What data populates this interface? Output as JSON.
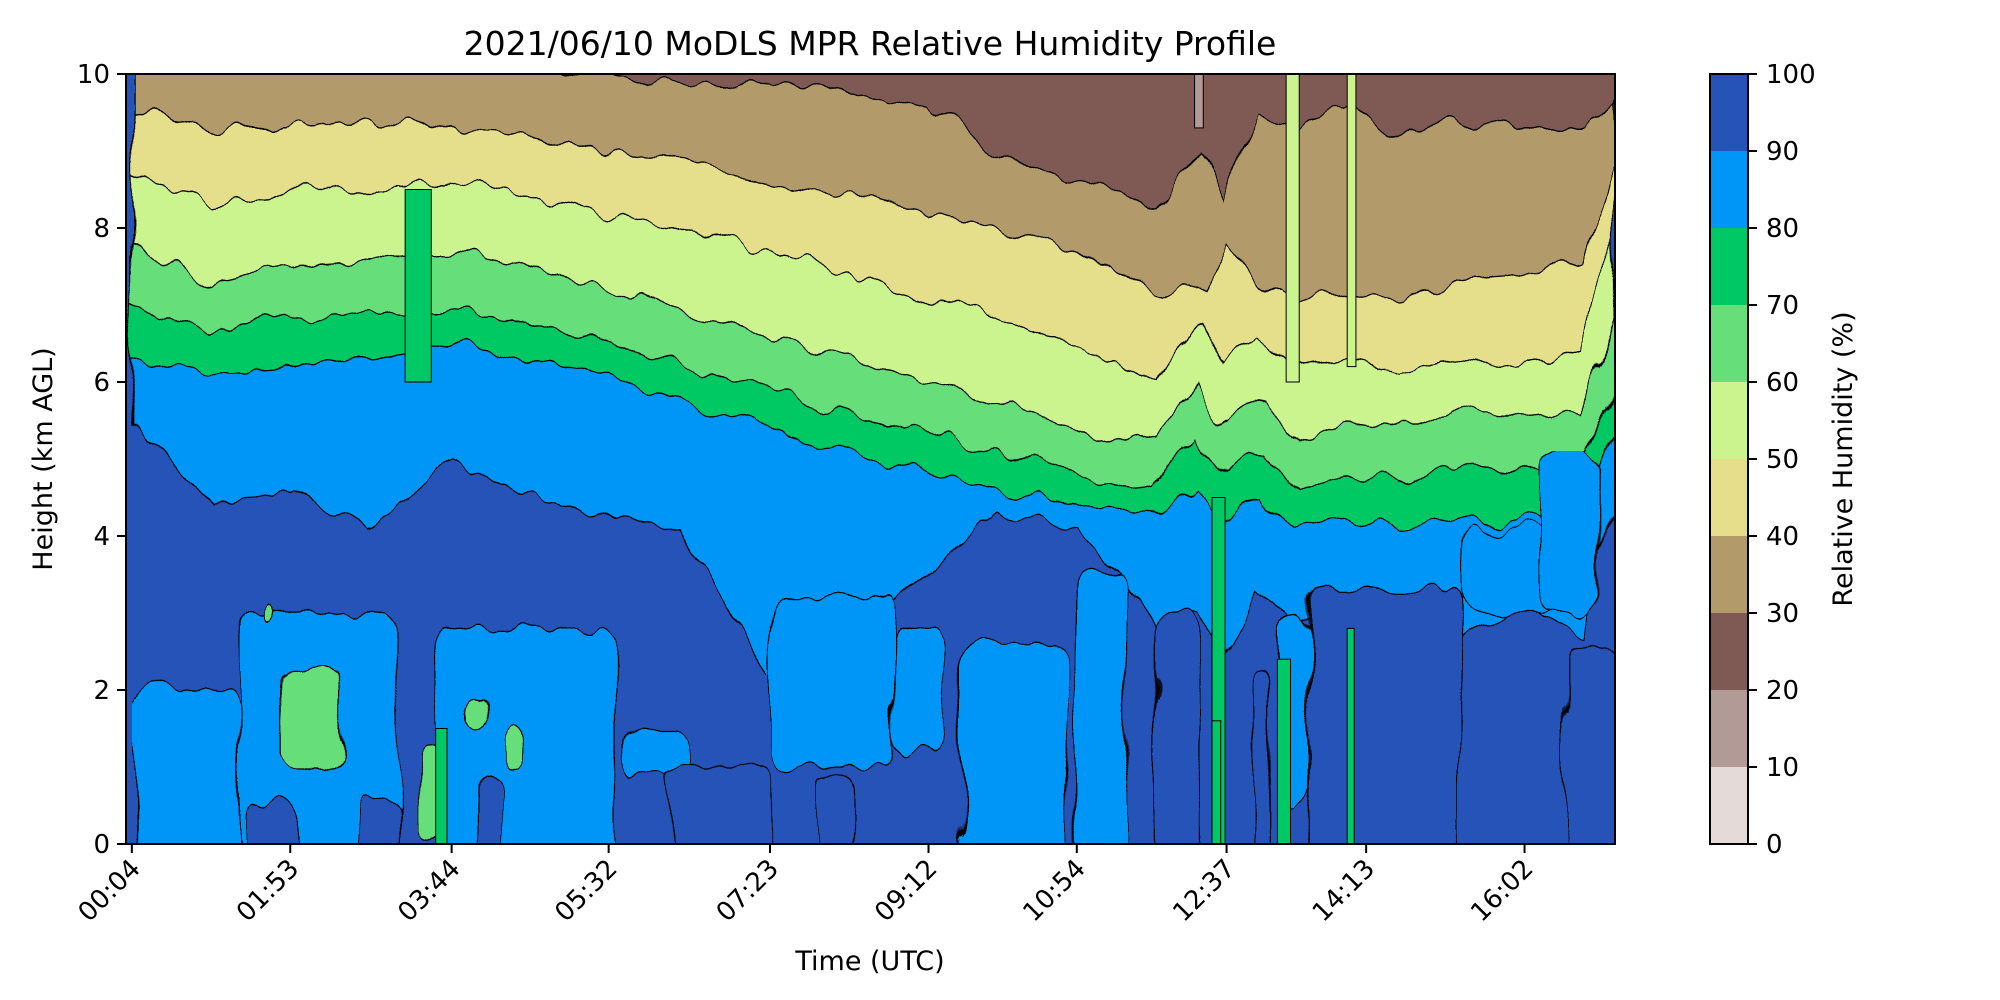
{
  "chart_data": {
    "type": "heatmap",
    "subtype": "filled-contour",
    "title": "2021/06/10 MoDLS MPR Relative Humidity Profile",
    "xlabel": "Time (UTC)",
    "ylabel": "Height (km AGL)",
    "x_tick_labels": [
      "00:04",
      "01:53",
      "03:44",
      "05:32",
      "07:23",
      "09:12",
      "10:54",
      "12:37",
      "14:13",
      "16:02"
    ],
    "y_ticks": [
      0,
      2,
      4,
      6,
      8,
      10
    ],
    "ylim": [
      0,
      10
    ],
    "colorbar": {
      "label": "Relative Humidity (%)",
      "ticks": [
        0,
        10,
        20,
        30,
        40,
        50,
        60,
        70,
        80,
        90,
        100
      ],
      "levels": [
        {
          "range": [
            0,
            10
          ],
          "color": "#e4dbd9"
        },
        {
          "range": [
            10,
            20
          ],
          "color": "#b29b97"
        },
        {
          "range": [
            20,
            30
          ],
          "color": "#7f5a54"
        },
        {
          "range": [
            30,
            40
          ],
          "color": "#b29a6b"
        },
        {
          "range": [
            40,
            50
          ],
          "color": "#e5de8b"
        },
        {
          "range": [
            50,
            60
          ],
          "color": "#ccf48e"
        },
        {
          "range": [
            60,
            70
          ],
          "color": "#66de7a"
        },
        {
          "range": [
            70,
            80
          ],
          "color": "#00c864"
        },
        {
          "range": [
            80,
            90
          ],
          "color": "#0096f8"
        },
        {
          "range": [
            90,
            100
          ],
          "color": "#2653b8"
        }
      ]
    },
    "contour_boundaries_km": {
      "x_hours": [
        0.07,
        1.0,
        1.9,
        2.8,
        3.7,
        4.6,
        5.5,
        6.4,
        7.4,
        8.3,
        9.2,
        10.0,
        10.9,
        11.8,
        12.3,
        12.6,
        13.0,
        13.4,
        14.0,
        14.6,
        15.2,
        16.0,
        16.7,
        17.07
      ],
      "boundaries": [
        {
          "between": "20-30 / 30-40",
          "y": [
            10.2,
            10.3,
            10.3,
            10.3,
            10.2,
            10.1,
            10.0,
            9.9,
            9.85,
            9.75,
            9.6,
            9.0,
            8.6,
            8.3,
            9.0,
            8.4,
            9.5,
            9.3,
            9.6,
            9.2,
            9.4,
            9.3,
            9.3,
            9.6
          ]
        },
        {
          "between": "30-40 / 40-50",
          "y": [
            9.5,
            9.3,
            9.3,
            9.4,
            9.3,
            9.2,
            9.0,
            8.9,
            8.6,
            8.4,
            8.2,
            8.0,
            7.7,
            7.2,
            7.2,
            7.8,
            7.3,
            7.0,
            7.2,
            7.1,
            7.3,
            7.4,
            7.6,
            8.9
          ]
        },
        {
          "between": "40-50 / 50-60",
          "y": [
            8.7,
            8.3,
            8.5,
            8.5,
            8.6,
            8.4,
            8.2,
            8.0,
            7.7,
            7.4,
            7.1,
            6.8,
            6.5,
            6.0,
            6.8,
            6.3,
            6.6,
            6.2,
            6.3,
            6.1,
            6.3,
            6.2,
            6.4,
            7.9
          ]
        },
        {
          "between": "50-60 / 60-70",
          "y": [
            7.8,
            7.3,
            7.5,
            7.6,
            7.7,
            7.5,
            7.2,
            6.9,
            6.6,
            6.3,
            6.0,
            5.7,
            5.4,
            5.2,
            6.0,
            5.5,
            5.8,
            5.3,
            5.5,
            5.4,
            5.6,
            5.5,
            5.6,
            6.8
          ]
        },
        {
          "between": "60-70 / 70-80",
          "y": [
            7.0,
            6.7,
            6.8,
            6.9,
            6.9,
            6.8,
            6.5,
            6.2,
            5.9,
            5.6,
            5.3,
            5.1,
            4.8,
            4.6,
            5.3,
            4.8,
            5.1,
            4.6,
            4.8,
            4.7,
            4.9,
            4.8,
            4.9,
            6.1
          ]
        },
        {
          "between": "70-80 / 80-90",
          "y": [
            6.3,
            6.1,
            6.2,
            6.3,
            6.5,
            6.3,
            6.1,
            5.7,
            5.4,
            5.1,
            4.8,
            4.6,
            4.4,
            4.3,
            4.6,
            4.2,
            4.5,
            4.1,
            4.2,
            4.1,
            4.2,
            4.2,
            4.3,
            5.6
          ]
        },
        {
          "between": "80-90 / 90-100",
          "y": [
            5.5,
            4.4,
            4.6,
            4.1,
            5.0,
            4.5,
            4.3,
            4.1,
            2.2,
            2.6,
            3.5,
            4.3,
            4.1,
            2.9,
            3.0,
            2.4,
            3.3,
            2.9,
            3.0,
            2.8,
            2.6,
            3.1,
            2.7,
            4.6
          ]
        }
      ]
    }
  }
}
